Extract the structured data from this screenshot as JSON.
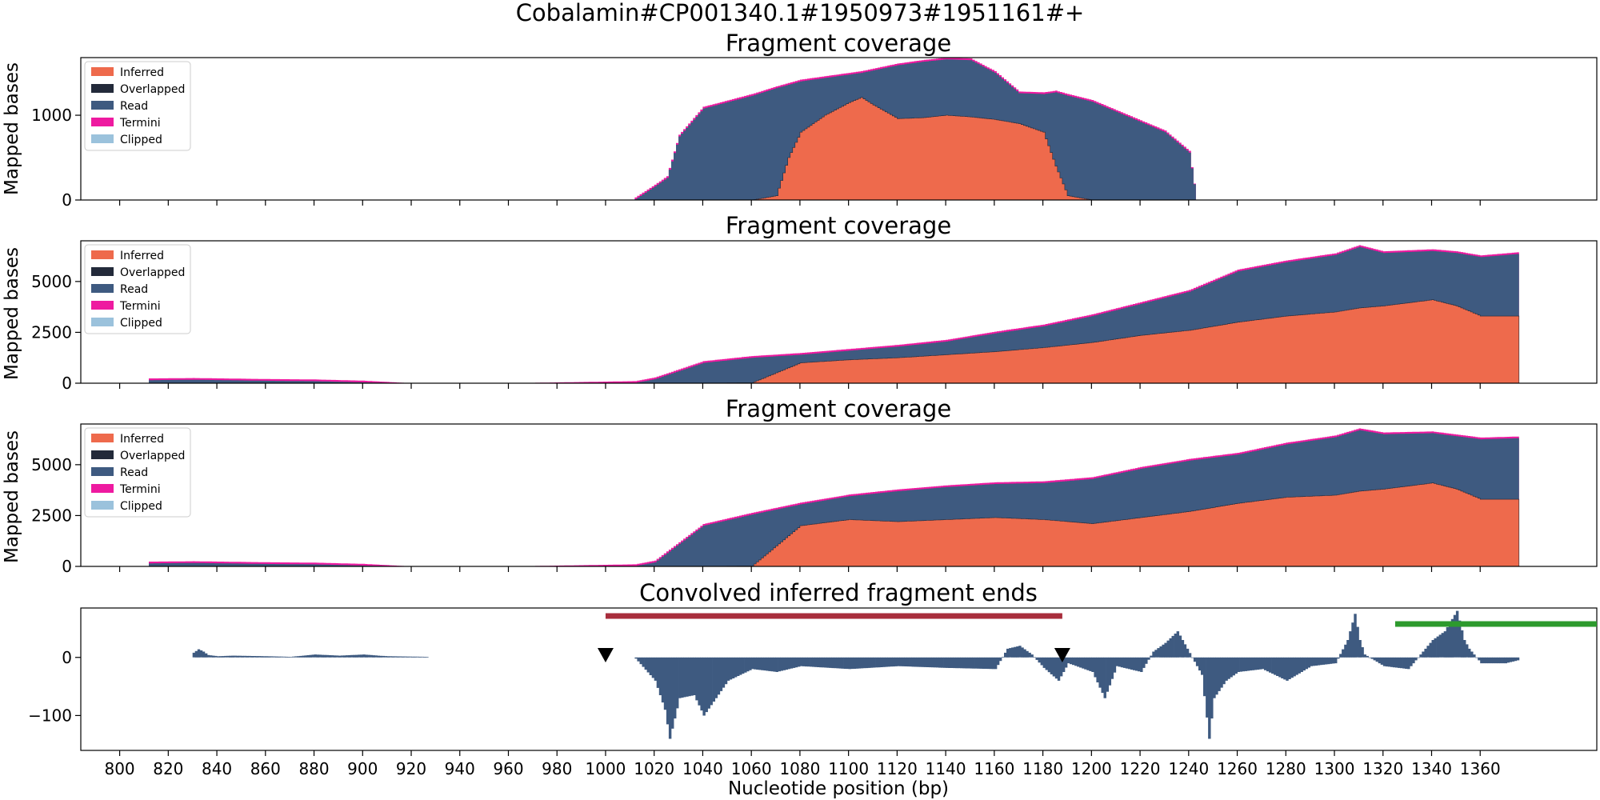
{
  "figure": {
    "suptitle": "Cobalamin#CP001340.1#1950973#1951161#+",
    "xlabel": "Nucleotide position (bp)",
    "x_ticks": [
      800,
      820,
      840,
      860,
      880,
      900,
      920,
      940,
      960,
      980,
      1000,
      1020,
      1040,
      1060,
      1080,
      1100,
      1120,
      1140,
      1160,
      1180,
      1200,
      1220,
      1240,
      1260,
      1280,
      1300,
      1320,
      1340,
      1360
    ],
    "xlim": [
      784,
      1408
    ]
  },
  "colors": {
    "inferred": "#ee6a4c",
    "overlapped": "#232a3a",
    "read": "#3e5a80",
    "termini": "#ee1aa0",
    "clipped": "#9bc2dc",
    "region_bar": "#a82d3c",
    "region_bar_2": "#2d9a2d",
    "marker": "#000000"
  },
  "legend": {
    "position": "top-left",
    "entries": [
      {
        "label": "Inferred",
        "color": "#ee6a4c"
      },
      {
        "label": "Overlapped",
        "color": "#232a3a"
      },
      {
        "label": "Read",
        "color": "#3e5a80"
      },
      {
        "label": "Termini",
        "color": "#ee1aa0"
      },
      {
        "label": "Clipped",
        "color": "#9bc2dc"
      }
    ]
  },
  "chart_data": [
    {
      "type": "area",
      "title": "Fragment coverage",
      "ylabel": "Mapped bases",
      "ylim": [
        0,
        1680
      ],
      "y_ticks": [
        0,
        1000
      ],
      "x": [
        1012,
        1020,
        1025,
        1030,
        1040,
        1060,
        1070,
        1075,
        1080,
        1090,
        1100,
        1105,
        1110,
        1120,
        1130,
        1140,
        1150,
        1160,
        1170,
        1180,
        1185,
        1190,
        1200,
        1210,
        1220,
        1230,
        1240,
        1243
      ],
      "series": [
        {
          "name": "Inferred",
          "values": [
            0,
            0,
            0,
            0,
            0,
            0,
            50,
            500,
            800,
            1000,
            1150,
            1210,
            1120,
            960,
            970,
            1000,
            980,
            950,
            900,
            800,
            400,
            50,
            0,
            0,
            0,
            0,
            0,
            0
          ]
        },
        {
          "name": "Read",
          "values": [
            10,
            160,
            260,
            750,
            1080,
            1230,
            1320,
            1360,
            1400,
            1440,
            1480,
            1500,
            1530,
            1590,
            1630,
            1660,
            1650,
            1500,
            1260,
            1250,
            1270,
            1230,
            1160,
            1040,
            920,
            800,
            560,
            0
          ]
        }
      ]
    },
    {
      "type": "area",
      "title": "Fragment coverage",
      "ylabel": "Mapped bases",
      "ylim": [
        0,
        7000
      ],
      "y_ticks": [
        0,
        2500,
        5000
      ],
      "x": [
        812,
        830,
        860,
        880,
        900,
        920,
        960,
        1012,
        1020,
        1040,
        1060,
        1080,
        1100,
        1120,
        1140,
        1160,
        1180,
        1200,
        1220,
        1240,
        1260,
        1280,
        1300,
        1310,
        1320,
        1340,
        1350,
        1360,
        1375
      ],
      "series": [
        {
          "name": "Inferred",
          "values": [
            0,
            0,
            0,
            0,
            0,
            0,
            0,
            0,
            0,
            0,
            20,
            1000,
            1150,
            1250,
            1400,
            1550,
            1750,
            2000,
            2350,
            2600,
            3000,
            3300,
            3500,
            3700,
            3800,
            4100,
            3800,
            3300,
            3300
          ]
        },
        {
          "name": "Read",
          "values": [
            150,
            170,
            120,
            100,
            40,
            0,
            0,
            20,
            200,
            1000,
            1250,
            1400,
            1600,
            1800,
            2050,
            2450,
            2800,
            3300,
            3900,
            4500,
            5500,
            5950,
            6300,
            6700,
            6400,
            6500,
            6400,
            6200,
            6350
          ]
        }
      ]
    },
    {
      "type": "area",
      "title": "Fragment coverage",
      "ylabel": "Mapped bases",
      "ylim": [
        0,
        7000
      ],
      "y_ticks": [
        0,
        2500,
        5000
      ],
      "x": [
        812,
        830,
        860,
        880,
        900,
        920,
        960,
        1012,
        1020,
        1040,
        1060,
        1080,
        1100,
        1120,
        1140,
        1160,
        1180,
        1200,
        1220,
        1240,
        1260,
        1280,
        1300,
        1310,
        1320,
        1340,
        1350,
        1360,
        1375
      ],
      "series": [
        {
          "name": "Inferred",
          "values": [
            0,
            0,
            0,
            0,
            0,
            0,
            0,
            0,
            0,
            0,
            20,
            2000,
            2300,
            2200,
            2300,
            2400,
            2300,
            2100,
            2400,
            2700,
            3100,
            3400,
            3500,
            3700,
            3800,
            4100,
            3800,
            3300,
            3300
          ]
        },
        {
          "name": "Read",
          "values": [
            150,
            170,
            120,
            100,
            40,
            0,
            0,
            20,
            200,
            2000,
            2550,
            3050,
            3450,
            3700,
            3900,
            4050,
            4100,
            4300,
            4800,
            5200,
            5500,
            6000,
            6350,
            6700,
            6500,
            6550,
            6400,
            6250,
            6300
          ]
        }
      ]
    },
    {
      "type": "bar",
      "title": "Convolved inferred fragment ends",
      "ylabel": "",
      "ylim": [
        -160,
        85
      ],
      "y_ticks": [
        -100,
        0
      ],
      "x": [
        830,
        832,
        834,
        836,
        840,
        846,
        860,
        870,
        880,
        890,
        900,
        906,
        910,
        926,
        1012,
        1020,
        1024,
        1026,
        1030,
        1036,
        1040,
        1050,
        1060,
        1070,
        1080,
        1100,
        1120,
        1140,
        1160,
        1165,
        1170,
        1175,
        1180,
        1186,
        1190,
        1200,
        1205,
        1210,
        1220,
        1225,
        1230,
        1235,
        1245,
        1248,
        1250,
        1255,
        1260,
        1270,
        1280,
        1290,
        1300,
        1305,
        1308,
        1310,
        1312,
        1320,
        1330,
        1340,
        1345,
        1350,
        1353,
        1355,
        1360,
        1370,
        1375
      ],
      "values": [
        8,
        14,
        10,
        4,
        2,
        3,
        2,
        1,
        5,
        3,
        5,
        3,
        2,
        1,
        -2,
        -40,
        -90,
        -140,
        -70,
        -65,
        -100,
        -40,
        -20,
        -25,
        -15,
        -20,
        -15,
        -18,
        -20,
        15,
        20,
        5,
        -18,
        -40,
        -10,
        -25,
        -70,
        -15,
        -25,
        10,
        25,
        45,
        -30,
        -140,
        -70,
        -40,
        -25,
        -20,
        -40,
        -15,
        -10,
        30,
        75,
        30,
        5,
        -15,
        -20,
        30,
        45,
        80,
        30,
        15,
        -10,
        -10,
        -5
      ]
    }
  ],
  "annotations": {
    "red_bar": {
      "x_start": 1000,
      "x_end": 1188
    },
    "green_bar": {
      "x_start": 1325,
      "x_end": 1408
    },
    "triangles": [
      1000,
      1188
    ]
  }
}
